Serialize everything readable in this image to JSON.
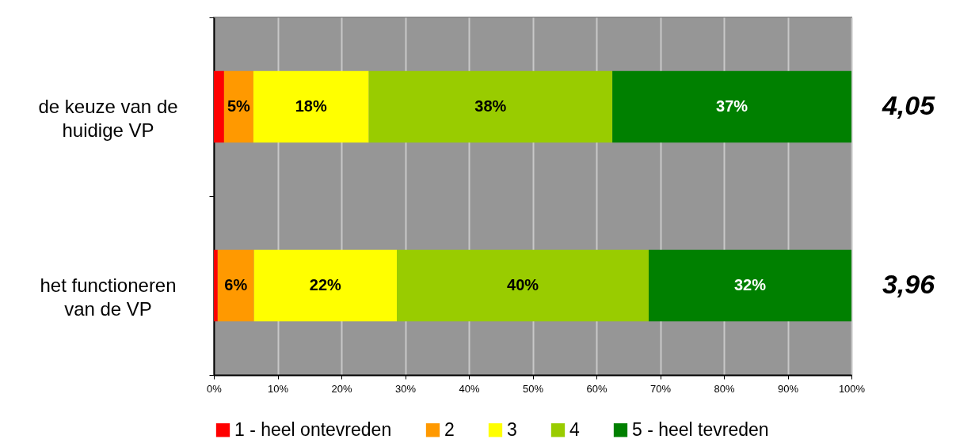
{
  "chart_data": {
    "type": "bar",
    "orientation": "horizontal",
    "stacked": true,
    "categories": [
      "de keuze van de huidige VP",
      "het functioneren van de VP"
    ],
    "series": [
      {
        "name": "1 - heel ontevreden",
        "color": "#ff0000",
        "values": [
          1.6,
          0.6
        ]
      },
      {
        "name": "2",
        "color": "#ff9900",
        "values": [
          4.6,
          5.7
        ],
        "value_labels": [
          "5%",
          "6%"
        ]
      },
      {
        "name": "3",
        "color": "#ffff00",
        "values": [
          18.1,
          22.4
        ],
        "value_labels": [
          "18%",
          "22%"
        ]
      },
      {
        "name": "4",
        "color": "#99cc00",
        "values": [
          38.2,
          39.5
        ],
        "value_labels": [
          "38%",
          "40%"
        ]
      },
      {
        "name": "5 - heel tevreden",
        "color": "#008000",
        "values": [
          37.5,
          31.8
        ],
        "value_labels": [
          "37%",
          "32%"
        ]
      }
    ],
    "xlim": [
      0,
      100
    ],
    "xticks": [
      {
        "value": 0,
        "label": "0%"
      },
      {
        "value": 10,
        "label": "10%"
      },
      {
        "value": 20,
        "label": "20%"
      },
      {
        "value": 30,
        "label": "30%"
      },
      {
        "value": 40,
        "label": "40%"
      },
      {
        "value": 50,
        "label": "50%"
      },
      {
        "value": 60,
        "label": "60%"
      },
      {
        "value": 70,
        "label": "70%"
      },
      {
        "value": 80,
        "label": "80%"
      },
      {
        "value": 90,
        "label": "90%"
      },
      {
        "value": 100,
        "label": "100%"
      }
    ],
    "grid": "x",
    "legend": "bottom",
    "annotations": [
      "4,05",
      "3,96"
    ]
  }
}
